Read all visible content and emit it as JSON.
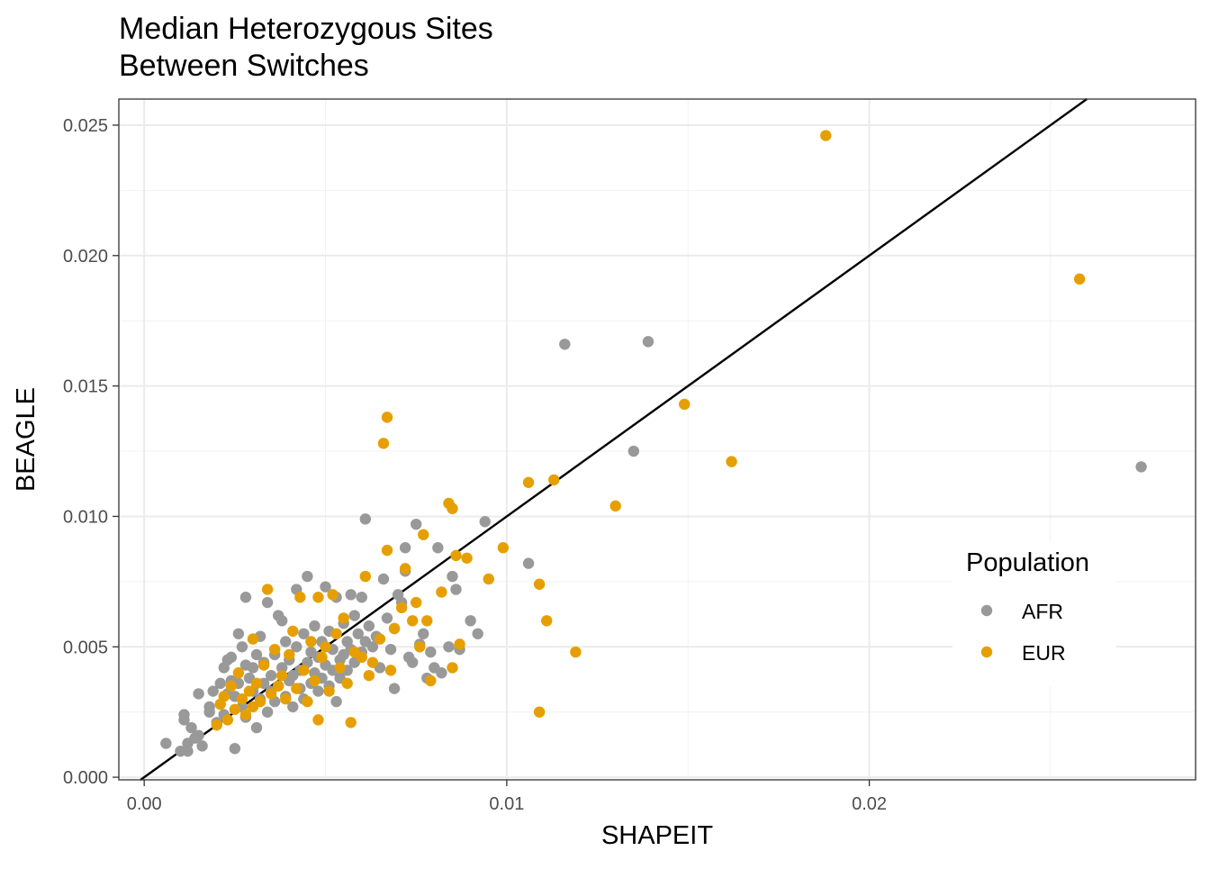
{
  "chart_data": {
    "type": "scatter",
    "title": [
      "Median Heterozygous Sites",
      "Between Switches"
    ],
    "xlabel": "SHAPEIT",
    "ylabel": "BEAGLE",
    "xlim": [
      -0.0007,
      0.029
    ],
    "ylim": [
      -0.0001,
      0.026
    ],
    "x_ticks": [
      0.0,
      0.01,
      0.02
    ],
    "x_tick_labels": [
      "0.00",
      "0.01",
      "0.02"
    ],
    "y_ticks": [
      0.0,
      0.005,
      0.01,
      0.015,
      0.02,
      0.025
    ],
    "y_tick_labels": [
      "0.000",
      "0.005",
      "0.010",
      "0.015",
      "0.020",
      "0.025"
    ],
    "grid": true,
    "reference_line": {
      "type": "identity",
      "color": "#000000"
    },
    "legend": {
      "title": "Population",
      "position": "right-inside",
      "entries": [
        {
          "name": "AFR",
          "color": "#999999"
        },
        {
          "name": "EUR",
          "color": "#E69F00"
        }
      ]
    },
    "series": [
      {
        "name": "AFR",
        "color": "#999999",
        "points": [
          [
            0.0006,
            0.0013
          ],
          [
            0.001,
            0.001
          ],
          [
            0.0011,
            0.0024
          ],
          [
            0.0011,
            0.0022
          ],
          [
            0.0012,
            0.0013
          ],
          [
            0.0012,
            0.001
          ],
          [
            0.0013,
            0.0019
          ],
          [
            0.0014,
            0.0015
          ],
          [
            0.0015,
            0.0016
          ],
          [
            0.0016,
            0.0012
          ],
          [
            0.0015,
            0.0032
          ],
          [
            0.0018,
            0.0027
          ],
          [
            0.0018,
            0.0025
          ],
          [
            0.0019,
            0.0033
          ],
          [
            0.002,
            0.0021
          ],
          [
            0.0021,
            0.0036
          ],
          [
            0.0022,
            0.0042
          ],
          [
            0.0022,
            0.0024
          ],
          [
            0.0023,
            0.0032
          ],
          [
            0.0023,
            0.0045
          ],
          [
            0.0024,
            0.0037
          ],
          [
            0.0024,
            0.0046
          ],
          [
            0.0025,
            0.0031
          ],
          [
            0.0025,
            0.0011
          ],
          [
            0.0026,
            0.0055
          ],
          [
            0.0026,
            0.0036
          ],
          [
            0.0027,
            0.005
          ],
          [
            0.0027,
            0.0027
          ],
          [
            0.0028,
            0.0043
          ],
          [
            0.0028,
            0.0069
          ],
          [
            0.0028,
            0.0023
          ],
          [
            0.0029,
            0.0038
          ],
          [
            0.003,
            0.0042
          ],
          [
            0.003,
            0.0033
          ],
          [
            0.0031,
            0.0047
          ],
          [
            0.0031,
            0.0019
          ],
          [
            0.0032,
            0.003
          ],
          [
            0.0032,
            0.0054
          ],
          [
            0.0033,
            0.0036
          ],
          [
            0.0033,
            0.0044
          ],
          [
            0.0034,
            0.0025
          ],
          [
            0.0034,
            0.0067
          ],
          [
            0.0035,
            0.0033
          ],
          [
            0.0035,
            0.0039
          ],
          [
            0.0036,
            0.0047
          ],
          [
            0.0036,
            0.0029
          ],
          [
            0.0037,
            0.0062
          ],
          [
            0.0037,
            0.0035
          ],
          [
            0.0038,
            0.006
          ],
          [
            0.0038,
            0.0042
          ],
          [
            0.0039,
            0.0031
          ],
          [
            0.0039,
            0.0052
          ],
          [
            0.004,
            0.0037
          ],
          [
            0.004,
            0.0045
          ],
          [
            0.0041,
            0.0027
          ],
          [
            0.0041,
            0.0039
          ],
          [
            0.0042,
            0.005
          ],
          [
            0.0042,
            0.0072
          ],
          [
            0.0043,
            0.0034
          ],
          [
            0.0043,
            0.0041
          ],
          [
            0.0044,
            0.0055
          ],
          [
            0.0044,
            0.003
          ],
          [
            0.0045,
            0.0077
          ],
          [
            0.0045,
            0.0044
          ],
          [
            0.0046,
            0.0036
          ],
          [
            0.0046,
            0.0048
          ],
          [
            0.0047,
            0.004
          ],
          [
            0.0047,
            0.0058
          ],
          [
            0.0048,
            0.0033
          ],
          [
            0.0048,
            0.0046
          ],
          [
            0.0049,
            0.0052
          ],
          [
            0.0049,
            0.0038
          ],
          [
            0.005,
            0.0073
          ],
          [
            0.005,
            0.0043
          ],
          [
            0.0051,
            0.0056
          ],
          [
            0.0051,
            0.0035
          ],
          [
            0.0052,
            0.0049
          ],
          [
            0.0052,
            0.0041
          ],
          [
            0.0053,
            0.0029
          ],
          [
            0.0053,
            0.0069
          ],
          [
            0.0054,
            0.0045
          ],
          [
            0.0054,
            0.0038
          ],
          [
            0.0055,
            0.0059
          ],
          [
            0.0055,
            0.0047
          ],
          [
            0.0056,
            0.0041
          ],
          [
            0.0056,
            0.0052
          ],
          [
            0.0057,
            0.007
          ],
          [
            0.0057,
            0.0049
          ],
          [
            0.0058,
            0.0062
          ],
          [
            0.0058,
            0.0044
          ],
          [
            0.0059,
            0.0055
          ],
          [
            0.006,
            0.0069
          ],
          [
            0.006,
            0.0048
          ],
          [
            0.0061,
            0.0099
          ],
          [
            0.0061,
            0.0052
          ],
          [
            0.0062,
            0.0058
          ],
          [
            0.0063,
            0.005
          ],
          [
            0.0064,
            0.0054
          ],
          [
            0.0065,
            0.0042
          ],
          [
            0.0066,
            0.0076
          ],
          [
            0.0067,
            0.0061
          ],
          [
            0.0068,
            0.0049
          ],
          [
            0.0069,
            0.0034
          ],
          [
            0.0069,
            0.0057
          ],
          [
            0.007,
            0.007
          ],
          [
            0.0071,
            0.0067
          ],
          [
            0.0072,
            0.0079
          ],
          [
            0.0072,
            0.0088
          ],
          [
            0.0073,
            0.0046
          ],
          [
            0.0074,
            0.0044
          ],
          [
            0.0075,
            0.0097
          ],
          [
            0.0076,
            0.0051
          ],
          [
            0.0077,
            0.0055
          ],
          [
            0.0078,
            0.0038
          ],
          [
            0.0079,
            0.0048
          ],
          [
            0.008,
            0.0042
          ],
          [
            0.0081,
            0.0088
          ],
          [
            0.0082,
            0.004
          ],
          [
            0.0084,
            0.005
          ],
          [
            0.0085,
            0.0077
          ],
          [
            0.0086,
            0.0072
          ],
          [
            0.0087,
            0.0049
          ],
          [
            0.009,
            0.006
          ],
          [
            0.0092,
            0.0055
          ],
          [
            0.0094,
            0.0098
          ],
          [
            0.0106,
            0.0082
          ],
          [
            0.0116,
            0.0166
          ],
          [
            0.0135,
            0.0125
          ],
          [
            0.0139,
            0.0167
          ],
          [
            0.0275,
            0.0119
          ]
        ]
      },
      {
        "name": "EUR",
        "color": "#E69F00",
        "points": [
          [
            0.002,
            0.002
          ],
          [
            0.0021,
            0.0028
          ],
          [
            0.0022,
            0.0031
          ],
          [
            0.0023,
            0.0022
          ],
          [
            0.0024,
            0.0035
          ],
          [
            0.0025,
            0.0026
          ],
          [
            0.0026,
            0.004
          ],
          [
            0.0027,
            0.003
          ],
          [
            0.0028,
            0.0024
          ],
          [
            0.0029,
            0.0033
          ],
          [
            0.003,
            0.0027
          ],
          [
            0.003,
            0.0053
          ],
          [
            0.0031,
            0.0036
          ],
          [
            0.0032,
            0.0029
          ],
          [
            0.0033,
            0.0043
          ],
          [
            0.0034,
            0.0072
          ],
          [
            0.0035,
            0.0032
          ],
          [
            0.0036,
            0.0049
          ],
          [
            0.0037,
            0.0035
          ],
          [
            0.0038,
            0.0039
          ],
          [
            0.0039,
            0.003
          ],
          [
            0.004,
            0.0047
          ],
          [
            0.0041,
            0.0056
          ],
          [
            0.0042,
            0.0034
          ],
          [
            0.0043,
            0.0069
          ],
          [
            0.0044,
            0.0041
          ],
          [
            0.0045,
            0.0029
          ],
          [
            0.0046,
            0.0052
          ],
          [
            0.0047,
            0.0037
          ],
          [
            0.0048,
            0.0069
          ],
          [
            0.0048,
            0.0022
          ],
          [
            0.0049,
            0.0046
          ],
          [
            0.005,
            0.005
          ],
          [
            0.0051,
            0.0033
          ],
          [
            0.0052,
            0.007
          ],
          [
            0.0053,
            0.0055
          ],
          [
            0.0054,
            0.0042
          ],
          [
            0.0055,
            0.0061
          ],
          [
            0.0056,
            0.0036
          ],
          [
            0.0057,
            0.0021
          ],
          [
            0.0058,
            0.0048
          ],
          [
            0.006,
            0.0046
          ],
          [
            0.0061,
            0.0077
          ],
          [
            0.0062,
            0.0039
          ],
          [
            0.0063,
            0.0044
          ],
          [
            0.0065,
            0.0053
          ],
          [
            0.0066,
            0.0128
          ],
          [
            0.0067,
            0.0138
          ],
          [
            0.0067,
            0.0087
          ],
          [
            0.0068,
            0.0041
          ],
          [
            0.0069,
            0.0057
          ],
          [
            0.0071,
            0.0065
          ],
          [
            0.0072,
            0.008
          ],
          [
            0.0074,
            0.006
          ],
          [
            0.0075,
            0.0067
          ],
          [
            0.0076,
            0.005
          ],
          [
            0.0077,
            0.0093
          ],
          [
            0.0078,
            0.006
          ],
          [
            0.0079,
            0.0037
          ],
          [
            0.0082,
            0.0071
          ],
          [
            0.0084,
            0.0105
          ],
          [
            0.0085,
            0.0042
          ],
          [
            0.0085,
            0.0103
          ],
          [
            0.0086,
            0.0085
          ],
          [
            0.0087,
            0.0051
          ],
          [
            0.0089,
            0.0084
          ],
          [
            0.0095,
            0.0076
          ],
          [
            0.0099,
            0.0088
          ],
          [
            0.0106,
            0.0113
          ],
          [
            0.0109,
            0.0074
          ],
          [
            0.0109,
            0.0025
          ],
          [
            0.0111,
            0.006
          ],
          [
            0.0113,
            0.0114
          ],
          [
            0.0119,
            0.0048
          ],
          [
            0.013,
            0.0104
          ],
          [
            0.0149,
            0.0143
          ],
          [
            0.0162,
            0.0121
          ],
          [
            0.0188,
            0.0246
          ],
          [
            0.0258,
            0.0191
          ]
        ]
      }
    ]
  }
}
